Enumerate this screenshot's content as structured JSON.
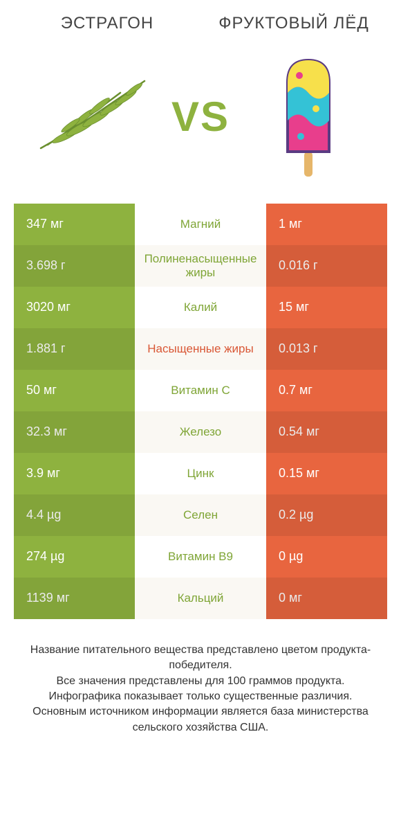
{
  "colors": {
    "left": "#8eb23f",
    "right": "#e8653f",
    "vs": "#8eb23f",
    "mid_green": "#7fa536",
    "mid_red": "#d95735",
    "text": "#444444"
  },
  "header": {
    "left": "ЭСТРАГОН",
    "right": "ФРУКТОВЫЙ ЛЁД",
    "vs": "VS"
  },
  "rows": [
    {
      "left": "347 мг",
      "mid": "Магний",
      "mid_color": "green",
      "right": "1 мг"
    },
    {
      "left": "3.698 г",
      "mid": "Полиненасыщенные жиры",
      "mid_color": "green",
      "right": "0.016 г"
    },
    {
      "left": "3020 мг",
      "mid": "Калий",
      "mid_color": "green",
      "right": "15 мг"
    },
    {
      "left": "1.881 г",
      "mid": "Насыщенные жиры",
      "mid_color": "red",
      "right": "0.013 г"
    },
    {
      "left": "50 мг",
      "mid": "Витамин C",
      "mid_color": "green",
      "right": "0.7 мг"
    },
    {
      "left": "32.3 мг",
      "mid": "Железо",
      "mid_color": "green",
      "right": "0.54 мг"
    },
    {
      "left": "3.9 мг",
      "mid": "Цинк",
      "mid_color": "green",
      "right": "0.15 мг"
    },
    {
      "left": "4.4 µg",
      "mid": "Селен",
      "mid_color": "green",
      "right": "0.2 µg"
    },
    {
      "left": "274 µg",
      "mid": "Витамин B9",
      "mid_color": "green",
      "right": "0 µg"
    },
    {
      "left": "1139 мг",
      "mid": "Кальций",
      "mid_color": "green",
      "right": "0 мг"
    }
  ],
  "footnote": "Название питательного вещества представлено цветом продукта-победителя.\nВсе значения представлены для 100 граммов продукта.\nИнфографика показывает только существенные различия.\nОсновным источником информации является база министерства сельского хозяйства США."
}
